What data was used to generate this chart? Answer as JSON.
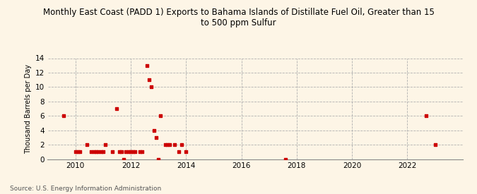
{
  "title": "Monthly East Coast (PADD 1) Exports to Bahama Islands of Distillate Fuel Oil, Greater than 15\nto 500 ppm Sulfur",
  "ylabel": "Thousand Barrels per Day",
  "source": "Source: U.S. Energy Information Administration",
  "background_color": "#fdf5e6",
  "marker_color": "#cc0000",
  "xlim": [
    2009.0,
    2024.0
  ],
  "ylim": [
    0,
    14
  ],
  "yticks": [
    0,
    2,
    4,
    6,
    8,
    10,
    12,
    14
  ],
  "xticks": [
    2010,
    2012,
    2014,
    2016,
    2018,
    2020,
    2022
  ],
  "data_points": [
    [
      2009.583,
      6.0
    ],
    [
      2010.0,
      1.0
    ],
    [
      2010.083,
      1.0
    ],
    [
      2010.167,
      1.0
    ],
    [
      2010.417,
      2.0
    ],
    [
      2010.583,
      1.0
    ],
    [
      2010.667,
      1.0
    ],
    [
      2010.75,
      1.0
    ],
    [
      2010.833,
      1.0
    ],
    [
      2010.917,
      1.0
    ],
    [
      2011.0,
      1.0
    ],
    [
      2011.083,
      2.0
    ],
    [
      2011.333,
      1.0
    ],
    [
      2011.5,
      7.0
    ],
    [
      2011.583,
      1.0
    ],
    [
      2011.667,
      1.0
    ],
    [
      2011.75,
      0.0
    ],
    [
      2011.833,
      1.0
    ],
    [
      2011.917,
      1.0
    ],
    [
      2012.0,
      1.0
    ],
    [
      2012.083,
      1.0
    ],
    [
      2012.167,
      1.0
    ],
    [
      2012.333,
      1.0
    ],
    [
      2012.417,
      1.0
    ],
    [
      2012.583,
      13.0
    ],
    [
      2012.667,
      11.0
    ],
    [
      2012.75,
      10.0
    ],
    [
      2012.833,
      4.0
    ],
    [
      2012.917,
      3.0
    ],
    [
      2013.0,
      0.0
    ],
    [
      2013.083,
      6.0
    ],
    [
      2013.25,
      2.0
    ],
    [
      2013.333,
      2.0
    ],
    [
      2013.417,
      2.0
    ],
    [
      2013.583,
      2.0
    ],
    [
      2013.75,
      1.0
    ],
    [
      2013.833,
      2.0
    ],
    [
      2014.0,
      1.0
    ],
    [
      2017.583,
      0.0
    ],
    [
      2022.667,
      6.0
    ],
    [
      2023.0,
      2.0
    ]
  ],
  "title_fontsize": 8.5,
  "ylabel_fontsize": 7,
  "tick_fontsize": 7.5,
  "source_fontsize": 6.5,
  "marker_size": 10
}
